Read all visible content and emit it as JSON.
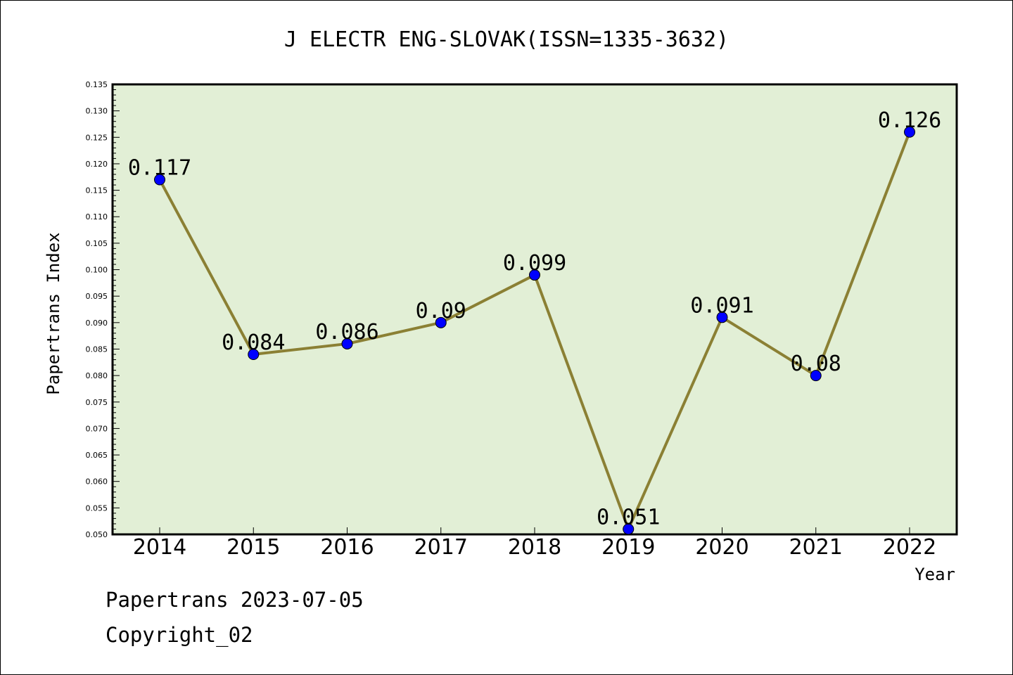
{
  "chart_data": {
    "type": "line",
    "title": "J ELECTR ENG-SLOVAK(ISSN=1335-3632)",
    "xlabel": "Year",
    "ylabel": "Papertrans Index",
    "categories": [
      "2014",
      "2015",
      "2016",
      "2017",
      "2018",
      "2019",
      "2020",
      "2021",
      "2022"
    ],
    "values": [
      0.117,
      0.084,
      0.086,
      0.09,
      0.099,
      0.051,
      0.091,
      0.08,
      0.126
    ],
    "data_labels": [
      "0.117",
      "0.084",
      "0.086",
      "0.09",
      "0.099",
      "0.051",
      "0.091",
      "0.08",
      "0.126"
    ],
    "ylim": [
      0.05,
      0.135
    ],
    "y_ticks": [
      "0.050",
      "0.055",
      "0.060",
      "0.065",
      "0.070",
      "0.075",
      "0.080",
      "0.085",
      "0.090",
      "0.095",
      "0.100",
      "0.105",
      "0.110",
      "0.115",
      "0.120",
      "0.125",
      "0.130",
      "0.135"
    ],
    "grid": false,
    "colors": {
      "plot_background": "#e2efd6",
      "line": "#8b8034",
      "marker": "#0000ff"
    }
  },
  "footer": {
    "line1": "Papertrans 2023-07-05",
    "line2": "Copyright_02"
  }
}
